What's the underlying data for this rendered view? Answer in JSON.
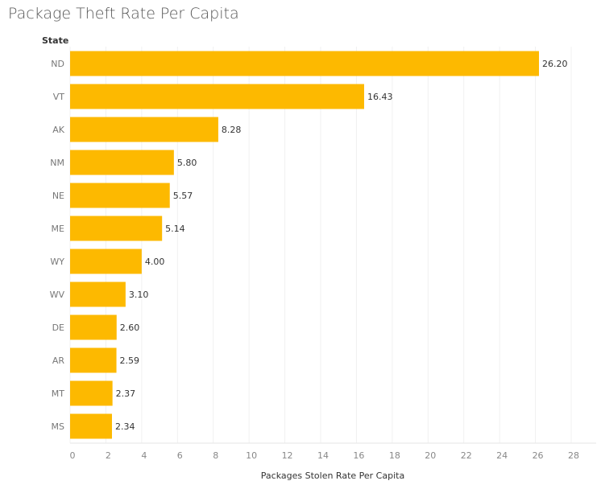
{
  "chart_data": {
    "type": "bar",
    "orientation": "horizontal",
    "title": "Package Theft Rate Per Capita",
    "ylabel": "State",
    "xlabel": "Packages Stolen Rate Per Capita",
    "categories": [
      "ND",
      "VT",
      "AK",
      "NM",
      "NE",
      "ME",
      "WY",
      "WV",
      "DE",
      "AR",
      "MT",
      "MS"
    ],
    "values": [
      26.2,
      16.43,
      8.28,
      5.8,
      5.57,
      5.14,
      4.0,
      3.1,
      2.6,
      2.59,
      2.37,
      2.34
    ],
    "value_labels": [
      "26.20",
      "16.43",
      "8.28",
      "5.80",
      "5.57",
      "5.14",
      "4.00",
      "3.10",
      "2.60",
      "2.59",
      "2.37",
      "2.34"
    ],
    "xticks": [
      0,
      2,
      4,
      6,
      8,
      10,
      12,
      14,
      16,
      18,
      20,
      22,
      24,
      26,
      28
    ],
    "xlim": [
      0,
      29.3
    ],
    "grid": true,
    "bar_color": "#FDB900"
  }
}
